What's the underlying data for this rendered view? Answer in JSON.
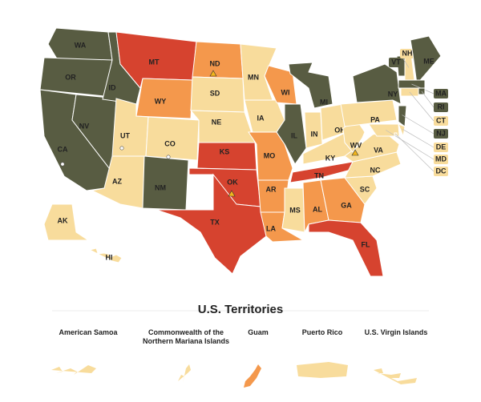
{
  "map": {
    "states": [
      {
        "label": "WA",
        "color": "#585c42"
      },
      {
        "label": "OR",
        "color": "#585c42"
      },
      {
        "label": "CA",
        "color": "#585c42"
      },
      {
        "label": "NV",
        "color": "#585c42"
      },
      {
        "label": "ID",
        "color": "#585c42"
      },
      {
        "label": "MT",
        "color": "#d6432f"
      },
      {
        "label": "WY",
        "color": "#f4984c"
      },
      {
        "label": "UT",
        "color": "#f8dc9c"
      },
      {
        "label": "AZ",
        "color": "#f8dc9c"
      },
      {
        "label": "CO",
        "color": "#f8dc9c"
      },
      {
        "label": "NM",
        "color": "#585c42"
      },
      {
        "label": "ND",
        "color": "#f4984c"
      },
      {
        "label": "SD",
        "color": "#f8dc9c"
      },
      {
        "label": "NE",
        "color": "#f8dc9c"
      },
      {
        "label": "KS",
        "color": "#d6432f"
      },
      {
        "label": "OK",
        "color": "#d6432f"
      },
      {
        "label": "TX",
        "color": "#d6432f"
      },
      {
        "label": "MN",
        "color": "#f8dc9c"
      },
      {
        "label": "IA",
        "color": "#f8dc9c"
      },
      {
        "label": "MO",
        "color": "#f4984c"
      },
      {
        "label": "AR",
        "color": "#f4984c"
      },
      {
        "label": "LA",
        "color": "#f4984c"
      },
      {
        "label": "WI",
        "color": "#f4984c"
      },
      {
        "label": "IL",
        "color": "#585c42"
      },
      {
        "label": "MI",
        "color": "#585c42"
      },
      {
        "label": "IN",
        "color": "#f8dc9c"
      },
      {
        "label": "OH",
        "color": "#f8dc9c"
      },
      {
        "label": "KY",
        "color": "#f8dc9c"
      },
      {
        "label": "TN",
        "color": "#d6432f"
      },
      {
        "label": "MS",
        "color": "#f8dc9c"
      },
      {
        "label": "AL",
        "color": "#f4984c"
      },
      {
        "label": "GA",
        "color": "#f4984c"
      },
      {
        "label": "FL",
        "color": "#d6432f"
      },
      {
        "label": "SC",
        "color": "#f8dc9c"
      },
      {
        "label": "NC",
        "color": "#f8dc9c"
      },
      {
        "label": "VA",
        "color": "#f8dc9c"
      },
      {
        "label": "WV",
        "color": "#f8dc9c"
      },
      {
        "label": "PA",
        "color": "#f8dc9c"
      },
      {
        "label": "NY",
        "color": "#585c42"
      },
      {
        "label": "VT",
        "color": "#585c42"
      },
      {
        "label": "NH",
        "color": "#f8dc9c"
      },
      {
        "label": "ME",
        "color": "#585c42"
      },
      {
        "label": "MA",
        "color": "#585c42"
      },
      {
        "label": "RI",
        "color": "#585c42"
      },
      {
        "label": "CT",
        "color": "#f8dc9c"
      },
      {
        "label": "NJ",
        "color": "#585c42"
      },
      {
        "label": "DE",
        "color": "#f8dc9c"
      },
      {
        "label": "MD",
        "color": "#f8dc9c"
      },
      {
        "label": "DC",
        "color": "#f8dc9c"
      },
      {
        "label": "AK",
        "color": "#f8dc9c"
      },
      {
        "label": "HI",
        "color": "#f8dc9c"
      }
    ],
    "territories": {
      "title": "U.S. Territories",
      "items": [
        {
          "label": "American Samoa",
          "color": "#f8dc9c"
        },
        {
          "label": "Commonwealth of the Northern Mariana Islands",
          "color": "#f8dc9c"
        },
        {
          "label": "Guam",
          "color": "#f4984c"
        },
        {
          "label": "Puerto Rico",
          "color": "#f8dc9c"
        },
        {
          "label": "U.S. Virgin Islands",
          "color": "#f8dc9c"
        }
      ]
    }
  }
}
